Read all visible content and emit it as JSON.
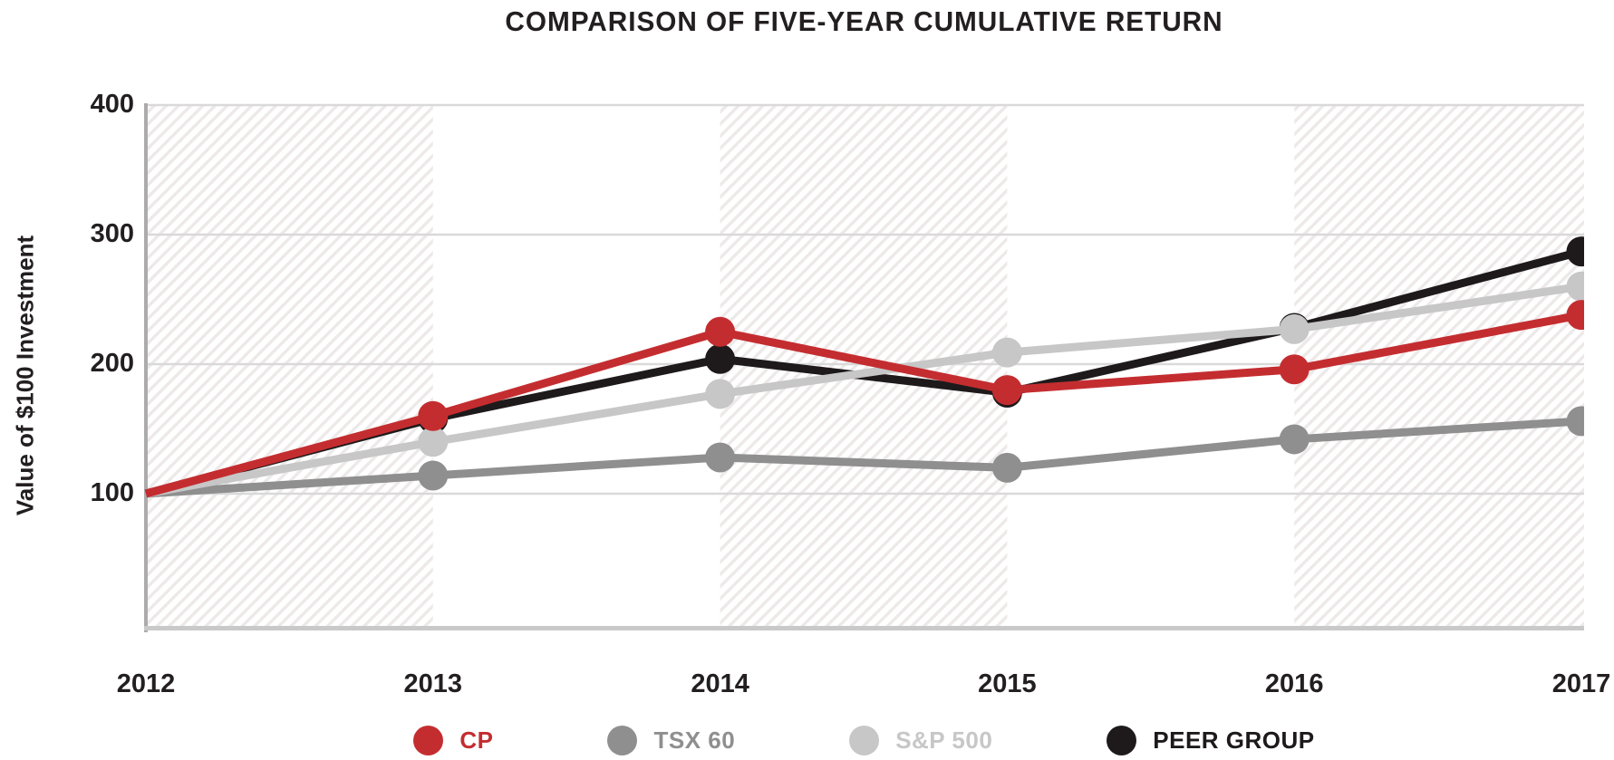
{
  "title": "COMPARISON OF FIVE-YEAR CUMULATIVE RETURN",
  "y_axis_label": "Value of $100 Investment",
  "chart_data": {
    "type": "line",
    "title": "COMPARISON OF FIVE-YEAR CUMULATIVE RETURN",
    "xlabel": "",
    "ylabel": "Value of $100 Investment",
    "categories": [
      "2012",
      "2013",
      "2014",
      "2015",
      "2016",
      "2017"
    ],
    "series": [
      {
        "name": "CP",
        "color": "#C42D30",
        "values": [
          100,
          160,
          225,
          180,
          196,
          238
        ]
      },
      {
        "name": "TSX 60",
        "color": "#8F8F8F",
        "values": [
          100,
          114,
          128,
          120,
          142,
          156
        ]
      },
      {
        "name": "S&P 500",
        "color": "#C7C7C7",
        "values": [
          100,
          140,
          177,
          209,
          227,
          260
        ]
      },
      {
        "name": "PEER GROUP",
        "color": "#1E1A1B",
        "values": [
          100,
          158,
          204,
          178,
          228,
          287
        ]
      }
    ],
    "draw_order": [
      "TSX 60",
      "PEER GROUP",
      "S&P 500",
      "CP"
    ],
    "ylim": [
      0,
      400
    ],
    "y_ticks": [
      400,
      300,
      200,
      100
    ],
    "grid": "horizontal gridlines at 100,200,300,400",
    "legend_position": "bottom",
    "background_bands": "diagonal-hatch bands spanning 2012-2013, 2014-2015, 2016-2017",
    "markers": "filled circles on each year point except 2012 start"
  },
  "legend": {
    "items": [
      {
        "label": "CP",
        "color": "#C42D30"
      },
      {
        "label": "TSX 60",
        "color": "#8F8F8F"
      },
      {
        "label": "S&P 500",
        "color": "#C7C7C7"
      },
      {
        "label": "PEER GROUP",
        "color": "#1E1A1B"
      }
    ]
  },
  "colors": {
    "background": "#FFFFFF",
    "text": "#231F20",
    "gridline": "#D9D9D9",
    "hatch_line": "#EDE9E9",
    "axis_left_border": "#ACACAC",
    "axis_bottom_border": "#C9C9C9"
  }
}
